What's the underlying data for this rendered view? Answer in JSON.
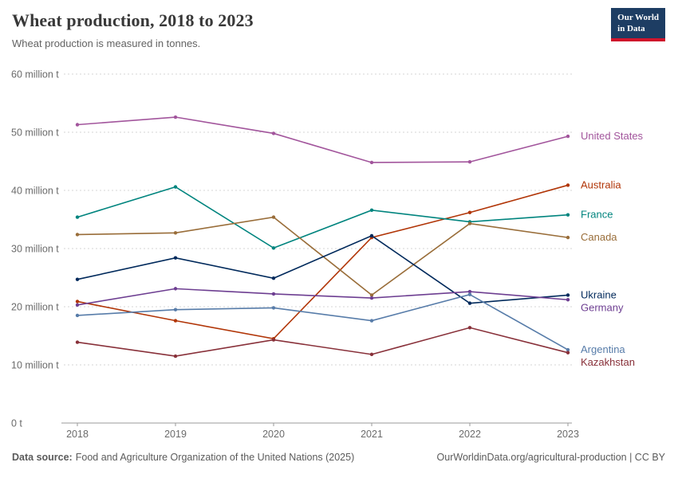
{
  "header": {
    "title": "Wheat production, 2018 to 2023",
    "subtitle": "Wheat production is measured in tonnes.",
    "logo": {
      "line1": "Our World",
      "line2": "in Data",
      "bg_color": "#1d3d63",
      "accent_color": "#d0132b"
    }
  },
  "chart_data": {
    "type": "line",
    "title": "Wheat production, 2018 to 2023",
    "unit": "tonnes",
    "x": [
      "2018",
      "2019",
      "2020",
      "2021",
      "2022",
      "2023"
    ],
    "ylim_million_tonnes": [
      0,
      60
    ],
    "grid": "horizontal-dashed",
    "legend_position": "right-edge-labels",
    "y_ticks": [
      {
        "value": 0,
        "label": "0 t"
      },
      {
        "value": 10,
        "label": "10 million t"
      },
      {
        "value": 20,
        "label": "20 million t"
      },
      {
        "value": 30,
        "label": "30 million t"
      },
      {
        "value": 40,
        "label": "40 million t"
      },
      {
        "value": 50,
        "label": "50 million t"
      },
      {
        "value": 60,
        "label": "60 million t"
      }
    ],
    "series": [
      {
        "name": "United States",
        "color": "#A2559C",
        "values_million_tonnes": [
          51.3,
          52.6,
          49.8,
          44.8,
          44.9,
          49.3
        ]
      },
      {
        "name": "Australia",
        "color": "#B13507",
        "values_million_tonnes": [
          20.9,
          17.6,
          14.5,
          31.9,
          36.2,
          40.9
        ]
      },
      {
        "name": "France",
        "color": "#00847E",
        "values_million_tonnes": [
          35.4,
          40.6,
          30.1,
          36.6,
          34.6,
          35.8
        ]
      },
      {
        "name": "Canada",
        "color": "#996D39",
        "values_million_tonnes": [
          32.4,
          32.7,
          35.4,
          22.0,
          34.3,
          31.9
        ]
      },
      {
        "name": "Ukraine",
        "color": "#00295B",
        "values_million_tonnes": [
          24.7,
          28.4,
          24.9,
          32.2,
          20.6,
          22.0
        ]
      },
      {
        "name": "Germany",
        "color": "#6D3E91",
        "values_million_tonnes": [
          20.3,
          23.1,
          22.2,
          21.5,
          22.6,
          21.2
        ]
      },
      {
        "name": "Argentina",
        "color": "#577CA9",
        "values_million_tonnes": [
          18.5,
          19.5,
          19.8,
          17.6,
          22.1,
          12.6
        ]
      },
      {
        "name": "Kazakhstan",
        "color": "#883039",
        "values_million_tonnes": [
          13.9,
          11.5,
          14.3,
          11.8,
          16.4,
          12.1
        ]
      }
    ]
  },
  "footer": {
    "source_label": "Data source:",
    "source_text": "Food and Agriculture Organization of the United Nations (2025)",
    "link_text": "OurWorldinData.org/agricultural-production | CC BY"
  }
}
